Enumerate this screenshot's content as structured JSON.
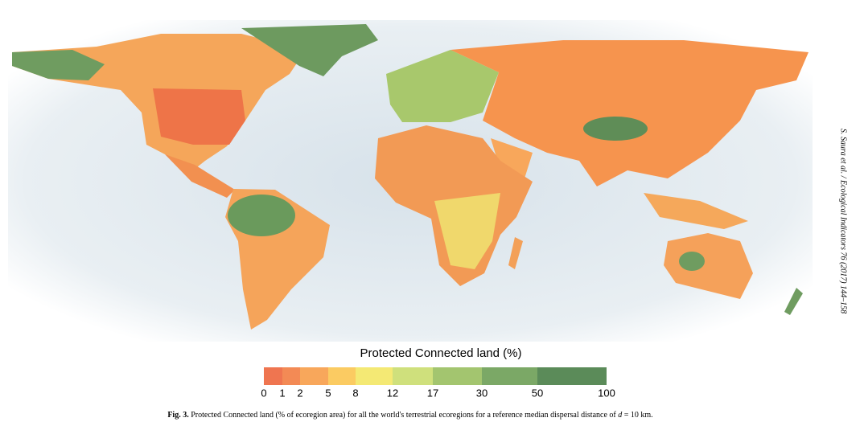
{
  "legend": {
    "title": "Protected Connected land (%)",
    "ticks": [
      "0",
      "1",
      "2",
      "5",
      "8",
      "12",
      "17",
      "30",
      "50",
      "100"
    ],
    "colors": [
      "#ef7550",
      "#f38a55",
      "#f8a75b",
      "#fbcb62",
      "#f4e974",
      "#cfe07c",
      "#a3c56f",
      "#7ba866",
      "#5b8b59"
    ]
  },
  "caption": {
    "label": "Fig. 3.",
    "text": "Protected Connected land (% of ecoregion area) for all the world's terrestrial ecoregions for a reference median dispersal distance of",
    "variable": "d",
    "suffix": "= 10 km."
  },
  "side_note": "S. Saura et al. / Ecological Indicators 76 (2017) 144–158"
}
